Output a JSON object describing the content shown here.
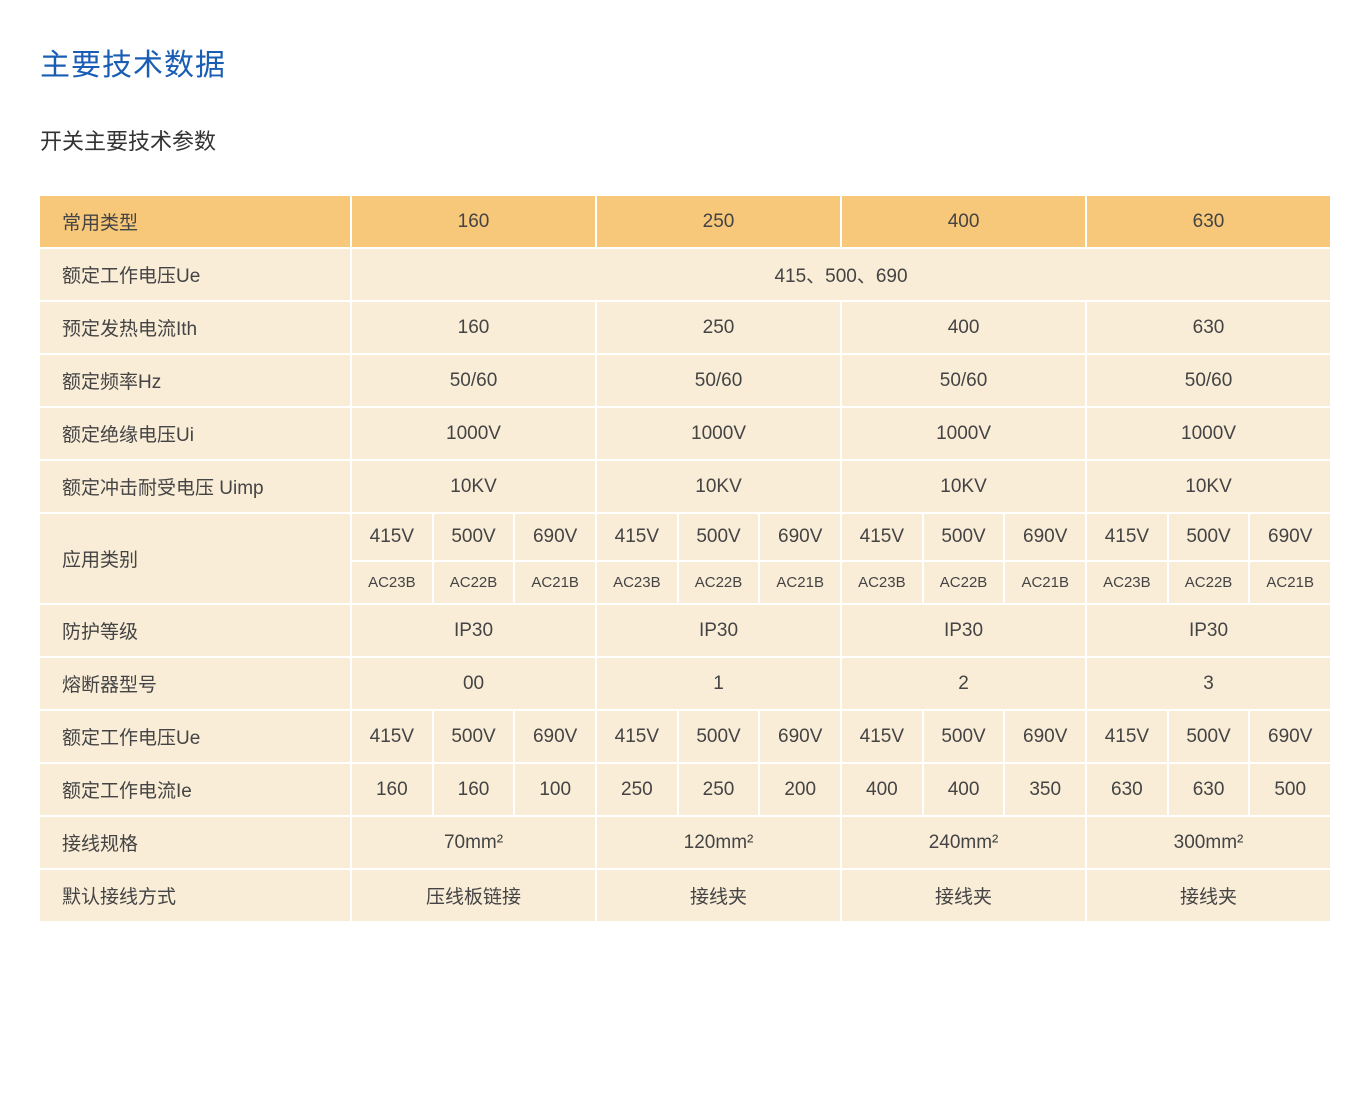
{
  "title": "主要技术数据",
  "subtitle": "开关主要技术参数",
  "table": {
    "rows": [
      {
        "label": "常用类型",
        "header": true,
        "cells": [
          {
            "text": "160",
            "span": 3
          },
          {
            "text": "250",
            "span": 3
          },
          {
            "text": "400",
            "span": 3
          },
          {
            "text": "630",
            "span": 3
          }
        ]
      },
      {
        "label": "额定工作电压Ue",
        "header": false,
        "cells": [
          {
            "text": "415、500、690",
            "span": 12
          }
        ]
      },
      {
        "label": "预定发热电流Ith",
        "header": false,
        "cells": [
          {
            "text": "160",
            "span": 3
          },
          {
            "text": "250",
            "span": 3
          },
          {
            "text": "400",
            "span": 3
          },
          {
            "text": "630",
            "span": 3
          }
        ]
      },
      {
        "label": "额定频率Hz",
        "header": false,
        "cells": [
          {
            "text": "50/60",
            "span": 3
          },
          {
            "text": "50/60",
            "span": 3
          },
          {
            "text": "50/60",
            "span": 3
          },
          {
            "text": "50/60",
            "span": 3
          }
        ]
      },
      {
        "label": "额定绝缘电压Ui",
        "header": false,
        "cells": [
          {
            "text": "1000V",
            "span": 3
          },
          {
            "text": "1000V",
            "span": 3
          },
          {
            "text": "1000V",
            "span": 3
          },
          {
            "text": "1000V",
            "span": 3
          }
        ]
      },
      {
        "label": "额定冲击耐受电压 Uimp",
        "header": false,
        "cells": [
          {
            "text": "10KV",
            "span": 3
          },
          {
            "text": "10KV",
            "span": 3
          },
          {
            "text": "10KV",
            "span": 3
          },
          {
            "text": "10KV",
            "span": 3
          }
        ]
      },
      {
        "label": "应用类别",
        "header": false,
        "rowspan": 2,
        "cells": [
          {
            "text": "415V"
          },
          {
            "text": "500V"
          },
          {
            "text": "690V"
          },
          {
            "text": "415V"
          },
          {
            "text": "500V"
          },
          {
            "text": "690V"
          },
          {
            "text": "415V"
          },
          {
            "text": "500V"
          },
          {
            "text": "690V"
          },
          {
            "text": "415V"
          },
          {
            "text": "500V"
          },
          {
            "text": "690V"
          }
        ]
      },
      {
        "no_label": true,
        "small": true,
        "cells": [
          {
            "text": "AC23B"
          },
          {
            "text": "AC22B"
          },
          {
            "text": "AC21B"
          },
          {
            "text": "AC23B"
          },
          {
            "text": "AC22B"
          },
          {
            "text": "AC21B"
          },
          {
            "text": "AC23B"
          },
          {
            "text": "AC22B"
          },
          {
            "text": "AC21B"
          },
          {
            "text": "AC23B"
          },
          {
            "text": "AC22B"
          },
          {
            "text": "AC21B"
          }
        ]
      },
      {
        "label": "防护等级",
        "header": false,
        "cells": [
          {
            "text": "IP30",
            "span": 3
          },
          {
            "text": "IP30",
            "span": 3
          },
          {
            "text": "IP30",
            "span": 3
          },
          {
            "text": "IP30",
            "span": 3
          }
        ]
      },
      {
        "label": "熔断器型号",
        "header": false,
        "cells": [
          {
            "text": "00",
            "span": 3
          },
          {
            "text": "1",
            "span": 3
          },
          {
            "text": "2",
            "span": 3
          },
          {
            "text": "3",
            "span": 3
          }
        ]
      },
      {
        "label": "额定工作电压Ue",
        "header": false,
        "cells": [
          {
            "text": "415V"
          },
          {
            "text": "500V"
          },
          {
            "text": "690V"
          },
          {
            "text": "415V"
          },
          {
            "text": "500V"
          },
          {
            "text": "690V"
          },
          {
            "text": "415V"
          },
          {
            "text": "500V"
          },
          {
            "text": "690V"
          },
          {
            "text": "415V"
          },
          {
            "text": "500V"
          },
          {
            "text": "690V"
          }
        ]
      },
      {
        "label": "额定工作电流Ie",
        "header": false,
        "cells": [
          {
            "text": "160"
          },
          {
            "text": "160"
          },
          {
            "text": "100"
          },
          {
            "text": "250"
          },
          {
            "text": "250"
          },
          {
            "text": "200"
          },
          {
            "text": "400"
          },
          {
            "text": "400"
          },
          {
            "text": "350"
          },
          {
            "text": "630"
          },
          {
            "text": "630"
          },
          {
            "text": "500"
          }
        ]
      },
      {
        "label": "接线规格",
        "header": false,
        "cells": [
          {
            "text": "70mm²",
            "span": 3
          },
          {
            "text": "120mm²",
            "span": 3
          },
          {
            "text": "240mm²",
            "span": 3
          },
          {
            "text": "300mm²",
            "span": 3
          }
        ]
      },
      {
        "label": "默认接线方式",
        "header": false,
        "cells": [
          {
            "text": "压线板链接",
            "span": 3
          },
          {
            "text": "接线夹",
            "span": 3
          },
          {
            "text": "接线夹",
            "span": 3
          },
          {
            "text": "接线夹",
            "span": 3
          }
        ]
      }
    ]
  },
  "colors": {
    "title_color": "#1a5db4",
    "body_bg": "#faedd8",
    "header_bg": "#f7c77a",
    "border_color": "#ffffff",
    "text_color": "#444444"
  }
}
